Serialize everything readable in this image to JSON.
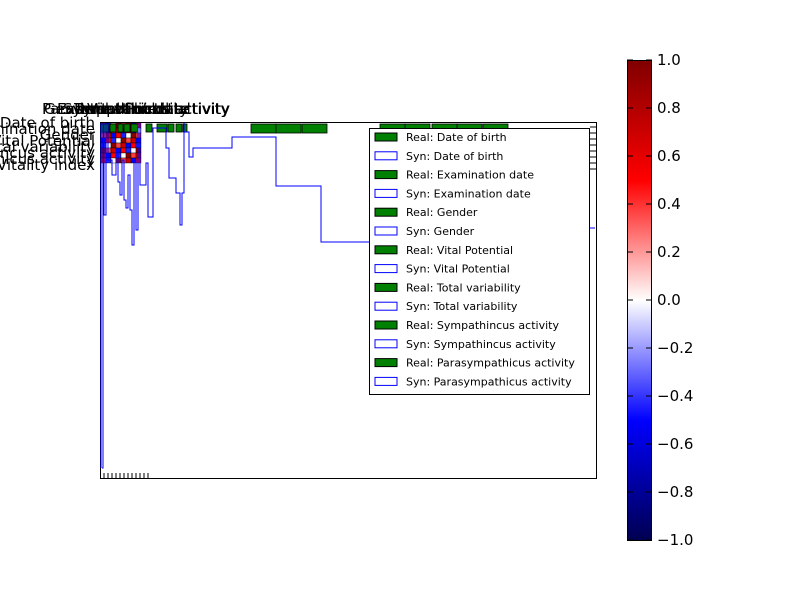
{
  "chart_data": {
    "type": "heatmap",
    "title": "",
    "colors": {
      "real": "#008000",
      "syn": "#0000ff",
      "border": "#000000"
    },
    "top_labels": [
      "Parasympathicus activity",
      "Sympathincus activity",
      "Total variability",
      "Vital Potential",
      "Gender",
      "Examination date",
      "Date of birth"
    ],
    "left_labels": [
      "Date of birth",
      "Examination date",
      "Gender",
      "Vital Potential",
      "Total variability",
      "Sympathincus activity",
      "Parasympathicus activity",
      "Vitality index"
    ],
    "legend": {
      "position": "upper-right",
      "entries": [
        {
          "label": "Real: Date of birth",
          "kind": "real"
        },
        {
          "label": "Syn: Date of birth",
          "kind": "syn"
        },
        {
          "label": "Real: Examination date",
          "kind": "real"
        },
        {
          "label": "Syn: Examination date",
          "kind": "syn"
        },
        {
          "label": "Real: Gender",
          "kind": "real"
        },
        {
          "label": "Syn: Gender",
          "kind": "syn"
        },
        {
          "label": "Real: Vital Potential",
          "kind": "real"
        },
        {
          "label": "Syn: Vital Potential",
          "kind": "syn"
        },
        {
          "label": "Real: Total variability",
          "kind": "real"
        },
        {
          "label": "Syn: Total variability",
          "kind": "syn"
        },
        {
          "label": "Real: Sympathincus activity",
          "kind": "real"
        },
        {
          "label": "Syn: Sympathincus activity",
          "kind": "syn"
        },
        {
          "label": "Real: Parasympathicus activity",
          "kind": "real"
        },
        {
          "label": "Syn: Parasympathicus activity",
          "kind": "syn"
        }
      ]
    },
    "colorbar": {
      "range": [
        -1.0,
        1.0
      ],
      "ticks": [
        "1.0",
        "0.8",
        "0.6",
        "0.4",
        "0.2",
        "0.0",
        "−0.2",
        "−0.4",
        "−0.6",
        "−0.8",
        "−1.0"
      ],
      "colormap": "seismic"
    },
    "syn_step_series": {
      "x": [
        0,
        1,
        2,
        3,
        5,
        10,
        20,
        30,
        50,
        65,
        90,
        130,
        170,
        220,
        260,
        300,
        400,
        500
      ],
      "y": [
        0.0,
        0.85,
        0.2,
        0.25,
        0.18,
        0.04,
        0.06,
        0.08,
        0.2,
        0.12,
        0.1,
        0.05,
        0.04,
        0.04,
        0.18,
        0.33,
        0.2,
        0.05
      ]
    }
  }
}
